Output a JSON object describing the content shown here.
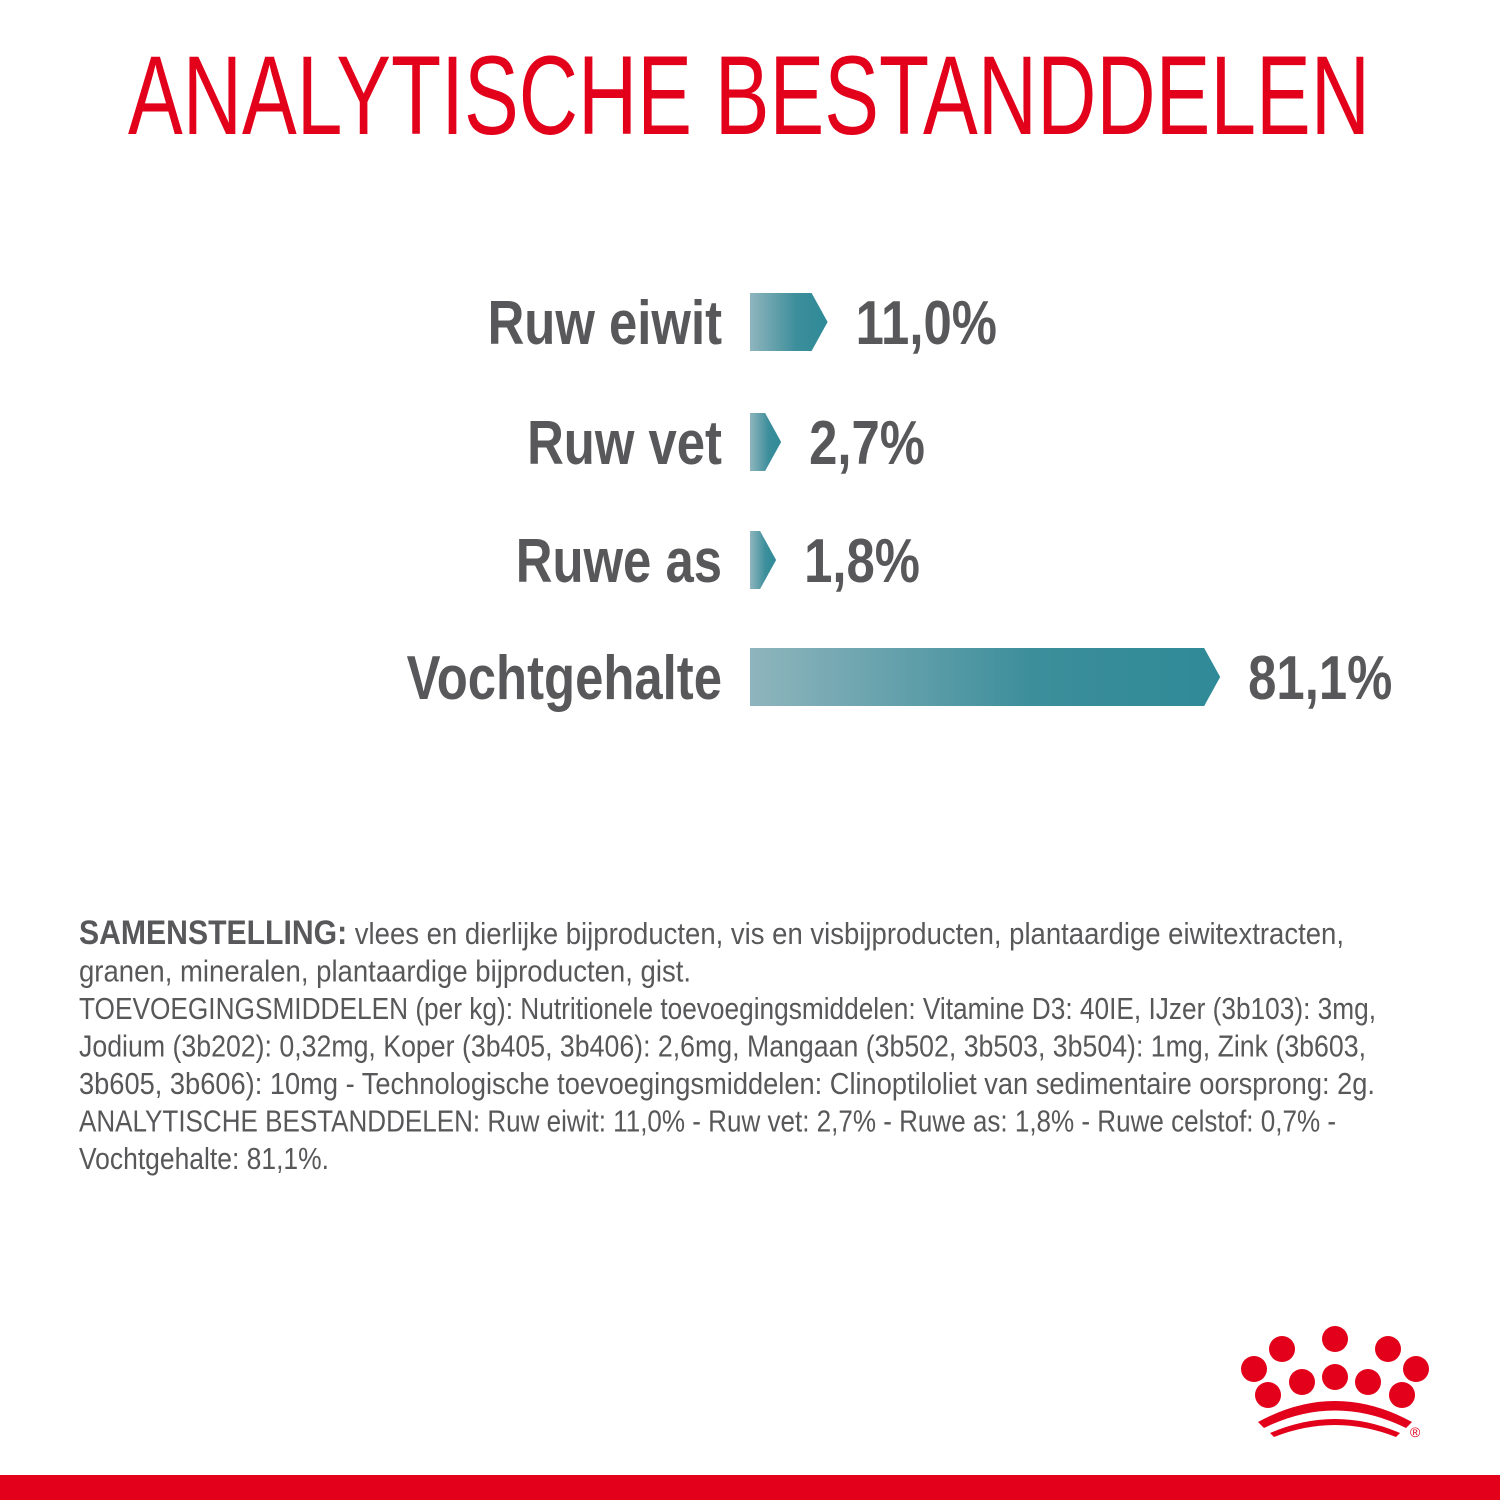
{
  "title": "ANALYTISCHE BESTANDDELEN",
  "colors": {
    "brand_red": "#e2001a",
    "text_gray": "#58585a",
    "bar_dark": "#2f8a97",
    "bar_light": "#8fb5bd"
  },
  "chart_data": {
    "type": "bar",
    "orientation": "horizontal",
    "categories": [
      "Ruw eiwit",
      "Ruw vet",
      "Ruwe as",
      "Vochtgehalte"
    ],
    "values": [
      11.0,
      2.7,
      1.8,
      81.1
    ],
    "value_labels": [
      "11,0%",
      "2,7%",
      "1,8%",
      "81,1%"
    ],
    "unit": "%",
    "grid": false
  },
  "composition": {
    "lines": [
      {
        "bold": "SAMENSTELLING:",
        "text": " vlees en dierlijke bijproducten, vis en visbijproducten, plantaardige eiwitextracten,"
      },
      {
        "bold": "",
        "text": "granen, mineralen, plantaardige bijproducten, gist."
      },
      {
        "bold": "",
        "text": "TOEVOEGINGSMIDDELEN (per kg): Nutritionele toevoegingsmiddelen: Vitamine D3: 40IE, IJzer (3b103): 3mg,"
      },
      {
        "bold": "",
        "text": "Jodium (3b202): 0,32mg, Koper (3b405, 3b406): 2,6mg, Mangaan (3b502, 3b503, 3b504): 1mg, Zink (3b603,"
      },
      {
        "bold": "",
        "text": "3b605, 3b606): 10mg - Technologische toevoegingsmiddelen: Clinoptiloliet van sedimentaire oorsprong: 2g."
      },
      {
        "bold": "",
        "text": "ANALYTISCHE BESTANDDELEN: Ruw eiwit: 11,0% - Ruw vet: 2,7% - Ruwe as: 1,8% - Ruwe celstof: 0,7% -"
      },
      {
        "bold": "",
        "text": "Vochtgehalte: 81,1%."
      }
    ]
  },
  "logo": {
    "name": "crown-logo",
    "mark": "®"
  }
}
